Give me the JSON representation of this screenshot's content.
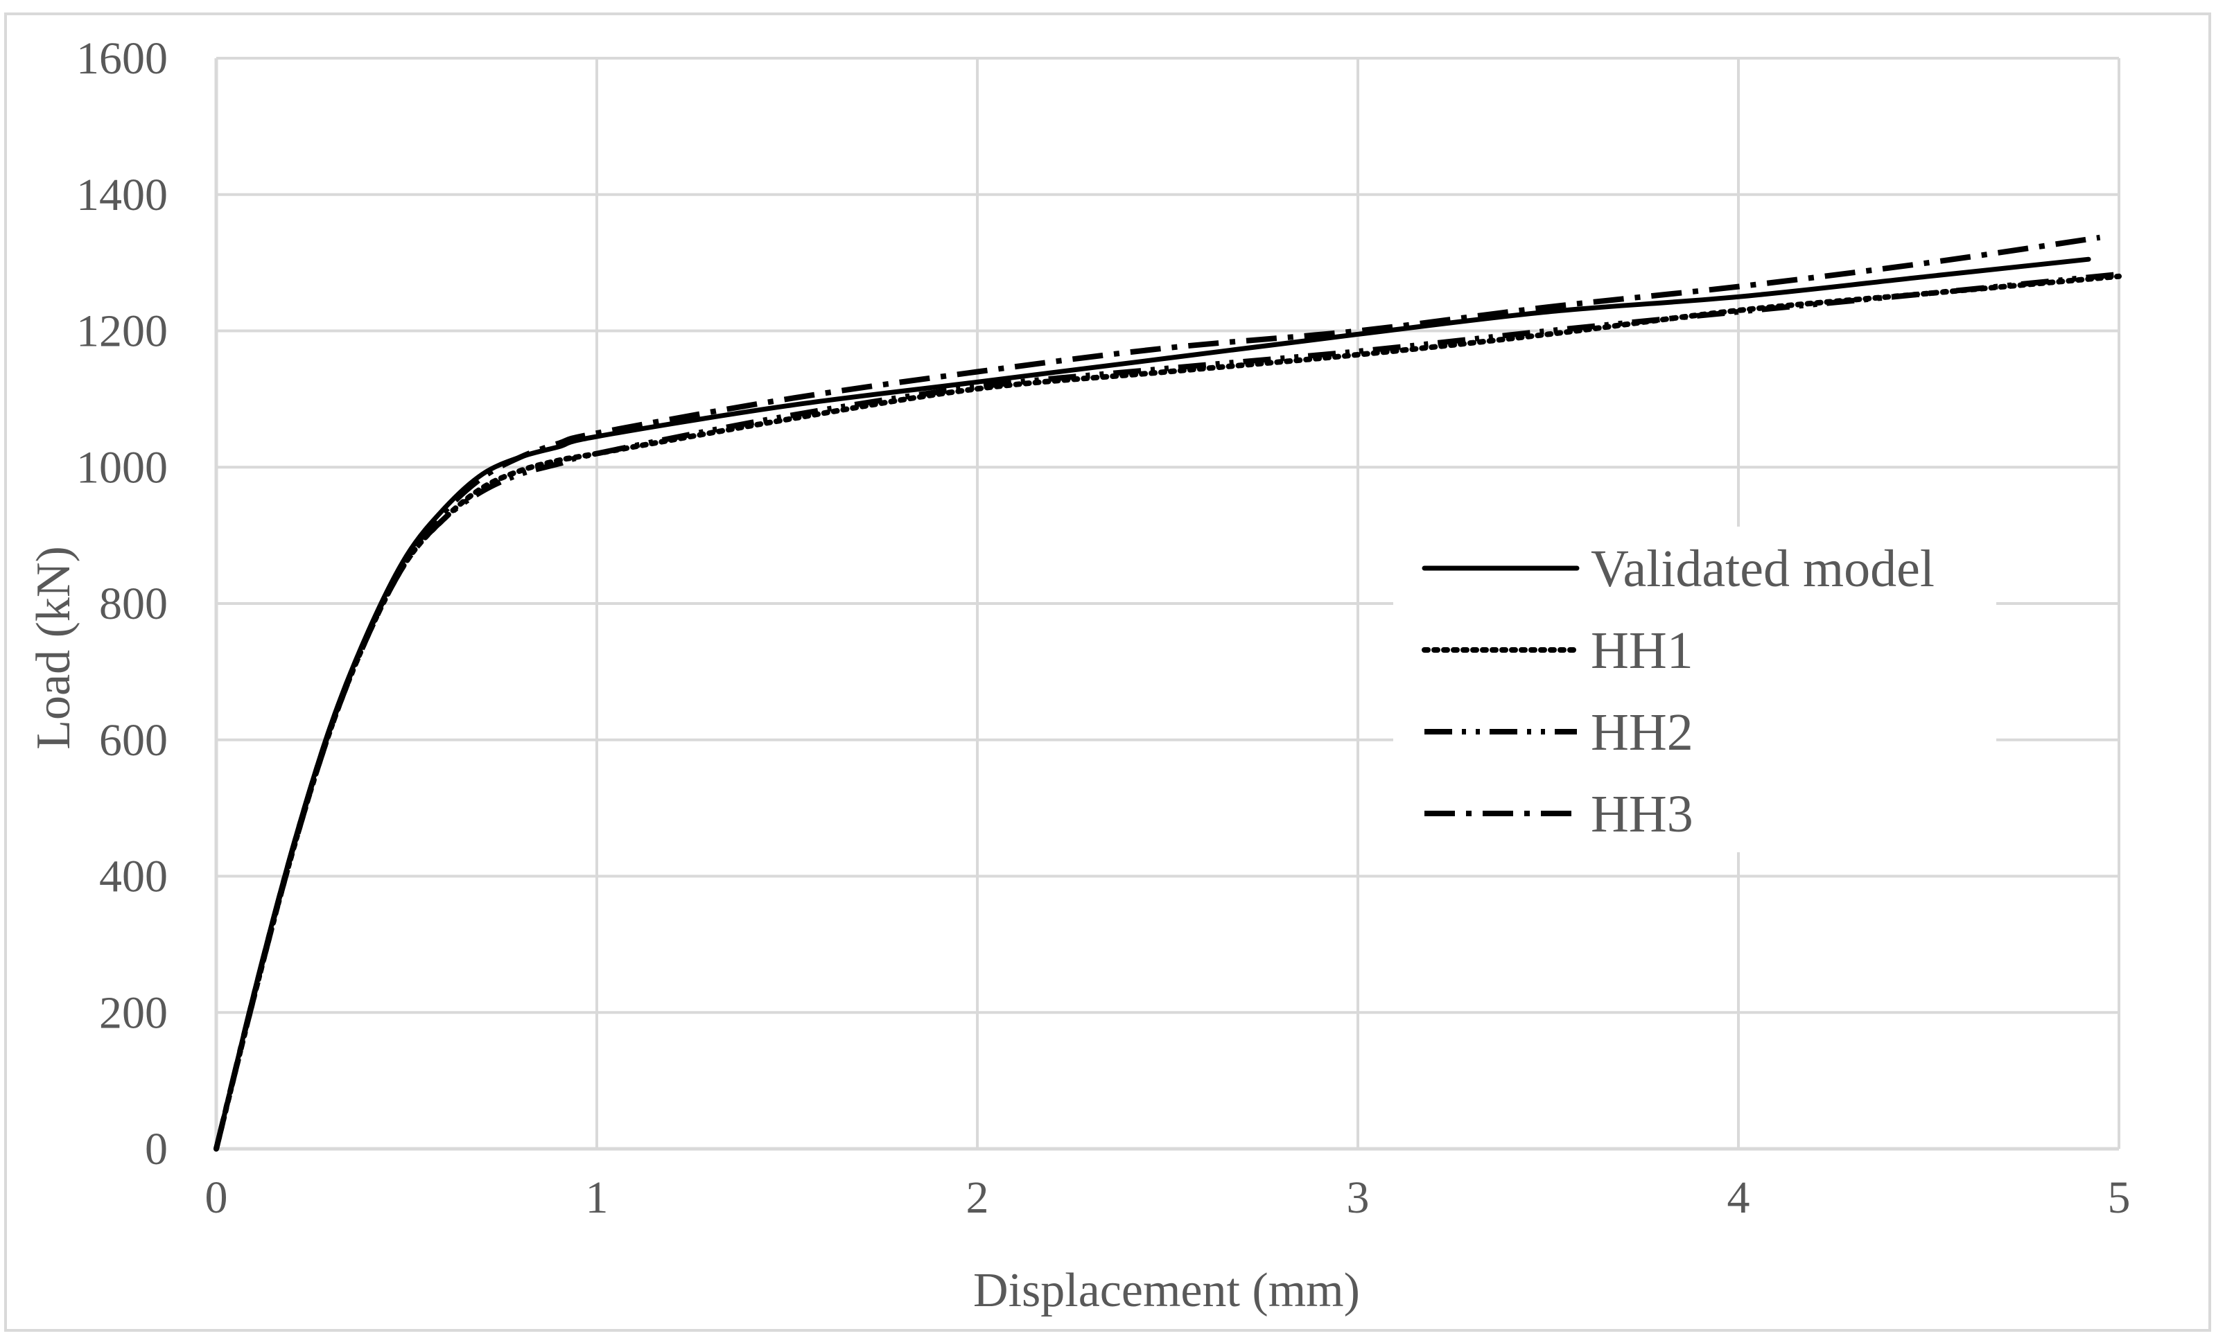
{
  "chart_data": {
    "type": "line",
    "title": "",
    "xlabel": "Displacement (mm)",
    "ylabel": "Load (kN)",
    "xlim": [
      0,
      5
    ],
    "ylim": [
      0,
      1600
    ],
    "x_ticks": [
      0,
      1,
      2,
      3,
      4,
      5
    ],
    "y_ticks": [
      0,
      200,
      400,
      600,
      800,
      1000,
      1200,
      1400,
      1600
    ],
    "grid": true,
    "legend_position": "right",
    "series": [
      {
        "name": "Validated model",
        "line_style": "solid",
        "color": "#000000",
        "points": [
          [
            0,
            0
          ],
          [
            0.1,
            230
          ],
          [
            0.2,
            440
          ],
          [
            0.3,
            620
          ],
          [
            0.4,
            760
          ],
          [
            0.5,
            870
          ],
          [
            0.6,
            940
          ],
          [
            0.7,
            990
          ],
          [
            0.8,
            1015
          ],
          [
            0.9,
            1030
          ],
          [
            1.0,
            1045
          ],
          [
            1.5,
            1090
          ],
          [
            2.0,
            1125
          ],
          [
            2.5,
            1160
          ],
          [
            3.0,
            1195
          ],
          [
            3.5,
            1228
          ],
          [
            4.0,
            1250
          ],
          [
            4.5,
            1280
          ],
          [
            4.92,
            1305
          ]
        ]
      },
      {
        "name": "HH1",
        "line_style": "dotted",
        "color": "#000000",
        "points": [
          [
            0,
            0
          ],
          [
            0.1,
            225
          ],
          [
            0.2,
            435
          ],
          [
            0.3,
            615
          ],
          [
            0.4,
            755
          ],
          [
            0.5,
            862
          ],
          [
            0.6,
            925
          ],
          [
            0.7,
            970
          ],
          [
            0.8,
            995
          ],
          [
            0.9,
            1010
          ],
          [
            1.0,
            1020
          ],
          [
            1.5,
            1070
          ],
          [
            2.0,
            1115
          ],
          [
            2.5,
            1140
          ],
          [
            3.0,
            1165
          ],
          [
            3.5,
            1195
          ],
          [
            4.0,
            1230
          ],
          [
            4.5,
            1255
          ],
          [
            5.0,
            1280
          ]
        ]
      },
      {
        "name": "HH2",
        "line_style": "dash-dot-dot",
        "color": "#000000",
        "points": [
          [
            0,
            0
          ],
          [
            0.1,
            225
          ],
          [
            0.2,
            435
          ],
          [
            0.3,
            615
          ],
          [
            0.4,
            755
          ],
          [
            0.5,
            862
          ],
          [
            0.6,
            925
          ],
          [
            0.7,
            965
          ],
          [
            0.8,
            990
          ],
          [
            0.9,
            1005
          ],
          [
            1.0,
            1020
          ],
          [
            1.5,
            1075
          ],
          [
            2.0,
            1118
          ],
          [
            2.5,
            1145
          ],
          [
            3.0,
            1170
          ],
          [
            3.5,
            1200
          ],
          [
            4.0,
            1228
          ],
          [
            4.5,
            1255
          ],
          [
            5.0,
            1283
          ]
        ]
      },
      {
        "name": "HH3",
        "line_style": "dash-dot",
        "color": "#000000",
        "points": [
          [
            0,
            0
          ],
          [
            0.1,
            228
          ],
          [
            0.2,
            438
          ],
          [
            0.3,
            618
          ],
          [
            0.4,
            758
          ],
          [
            0.5,
            866
          ],
          [
            0.6,
            935
          ],
          [
            0.7,
            985
          ],
          [
            0.8,
            1015
          ],
          [
            0.9,
            1035
          ],
          [
            1.0,
            1050
          ],
          [
            1.5,
            1100
          ],
          [
            2.0,
            1140
          ],
          [
            2.5,
            1175
          ],
          [
            3.0,
            1200
          ],
          [
            3.5,
            1235
          ],
          [
            4.0,
            1265
          ],
          [
            4.5,
            1300
          ],
          [
            4.95,
            1337
          ]
        ]
      }
    ]
  }
}
